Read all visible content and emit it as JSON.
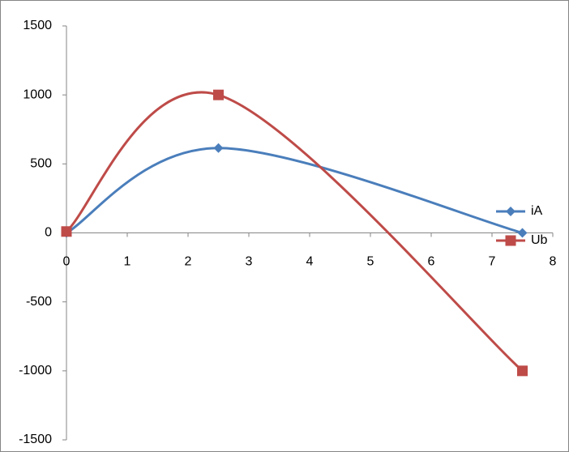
{
  "chart_data": {
    "type": "scatter",
    "smooth": true,
    "series": [
      {
        "name": "iA",
        "color": "#4a7ebb",
        "marker": "diamond",
        "x": [
          0,
          2.5,
          7.5
        ],
        "values": [
          0,
          615,
          0
        ]
      },
      {
        "name": "Ub",
        "color": "#be4b48",
        "marker": "square",
        "x": [
          0,
          2.5,
          7.5
        ],
        "values": [
          10,
          1000,
          -1000
        ]
      }
    ],
    "xlim": [
      0,
      8
    ],
    "xticks": [
      0,
      1,
      2,
      3,
      4,
      5,
      6,
      7,
      8
    ],
    "ylim": [
      -1500,
      1500
    ],
    "yticks": [
      -1500,
      -1000,
      -500,
      0,
      500,
      1000,
      1500
    ],
    "grid": false,
    "legend": "right"
  }
}
